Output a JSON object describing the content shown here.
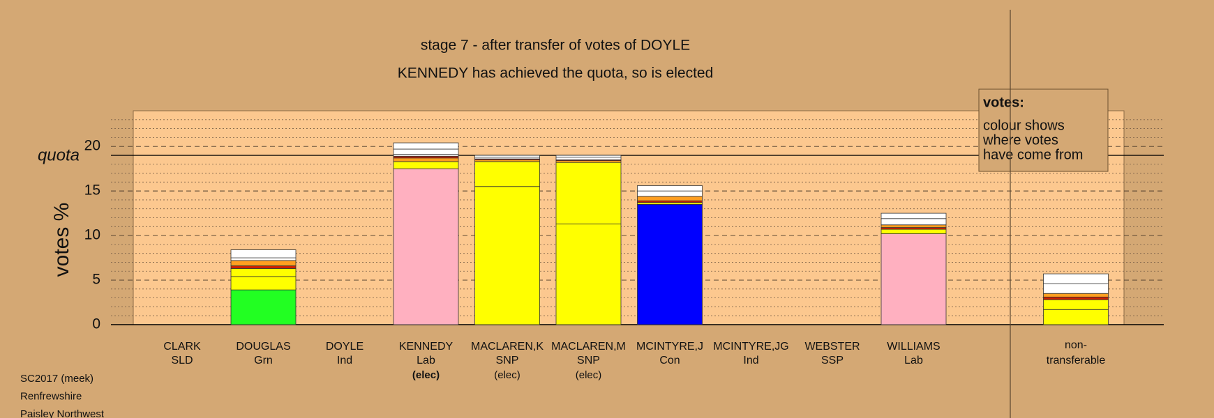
{
  "chart_data": {
    "type": "stacked-bar",
    "title": "stage 7 - after transfer of votes of DOYLE",
    "subtitle": "KENNEDY has achieved the quota, so is elected",
    "y_label": "votes %",
    "quota_label": "quota",
    "quota": 19.0,
    "ylim": [
      0,
      24
    ],
    "yticks": [
      0,
      5,
      10,
      15,
      20
    ],
    "grid": true,
    "categories": [
      "CLARK",
      "DOUGLAS",
      "DOYLE",
      "KENNEDY",
      "MACLAREN,K",
      "MACLAREN,M",
      "MCINTYRE,J",
      "MCINTYRE,JG",
      "WEBSTER",
      "WILLIAMS"
    ],
    "parties": [
      "SLD",
      "Grn",
      "Ind",
      "Lab",
      "SNP",
      "SNP",
      "Con",
      "Ind",
      "SSP",
      "Lab"
    ],
    "status": [
      null,
      null,
      null,
      "(elec)",
      "(elec)",
      "(elec)",
      null,
      null,
      null,
      null
    ],
    "highlight": 3,
    "stacks": [
      [],
      [
        {
          "color": "#22ff22",
          "value": 3.9
        },
        {
          "color": "#ffff00",
          "value": 1.5
        },
        {
          "color": "#ffff00",
          "value": 0.9
        },
        {
          "color": "#cc2000",
          "value": 0.3
        },
        {
          "color": "#ff9f20",
          "value": 0.6
        },
        {
          "color": "#ffffff",
          "value": 0.3
        },
        {
          "color": "#ffffff",
          "value": 0.9
        }
      ],
      [],
      [
        {
          "color": "#ffb0c0",
          "value": 17.5
        },
        {
          "color": "#ffff00",
          "value": 0.8
        },
        {
          "color": "#ff9f20",
          "value": 0.4
        },
        {
          "color": "#cc2000",
          "value": 0.2
        },
        {
          "color": "#ffffff",
          "value": 0.2
        },
        {
          "color": "#ffffff",
          "value": 0.6
        },
        {
          "color": "#ffffff",
          "value": 0.7
        }
      ],
      [
        {
          "color": "#ffff00",
          "value": 15.5
        },
        {
          "color": "#ffff00",
          "value": 2.8
        },
        {
          "color": "#ff9f20",
          "value": 0.2
        },
        {
          "color": "#cc2000",
          "value": 0.1
        },
        {
          "color": "#ffffff",
          "value": 0.2
        },
        {
          "color": "#ffffff",
          "value": 0.2
        }
      ],
      [
        {
          "color": "#ffff00",
          "value": 11.3
        },
        {
          "color": "#ffff00",
          "value": 6.9
        },
        {
          "color": "#ff9f20",
          "value": 0.2
        },
        {
          "color": "#cc2000",
          "value": 0.1
        },
        {
          "color": "#ffffff",
          "value": 0.3
        },
        {
          "color": "#ffffff",
          "value": 0.2
        }
      ],
      [
        {
          "color": "#0000ff",
          "value": 13.5
        },
        {
          "color": "#ffff00",
          "value": 0.2
        },
        {
          "color": "#cc2000",
          "value": 0.2
        },
        {
          "color": "#ff9f20",
          "value": 0.5
        },
        {
          "color": "#ffffff",
          "value": 0.6
        },
        {
          "color": "#ffffff",
          "value": 0.6
        }
      ],
      [],
      [],
      [
        {
          "color": "#ffb0c0",
          "value": 10.2
        },
        {
          "color": "#ffff00",
          "value": 0.5
        },
        {
          "color": "#cc2000",
          "value": 0.2
        },
        {
          "color": "#ff9f20",
          "value": 0.3
        },
        {
          "color": "#ffffff",
          "value": 0.7
        },
        {
          "color": "#ffffff",
          "value": 0.6
        }
      ]
    ],
    "extra": {
      "label": [
        "non-",
        "transferable"
      ],
      "segments": [
        {
          "color": "#ffff00",
          "value": 1.7
        },
        {
          "color": "#ffff00",
          "value": 1.1
        },
        {
          "color": "#cc2000",
          "value": 0.3
        },
        {
          "color": "#ff9f20",
          "value": 0.4
        },
        {
          "color": "#ffffff",
          "value": 1.1
        },
        {
          "color": "#ffffff",
          "value": 1.1
        }
      ]
    },
    "legend": {
      "title": "votes:",
      "lines": [
        "colour shows",
        "where votes",
        "have come from"
      ]
    }
  },
  "footer": [
    "SC2017 (meek)",
    "Renfrewshire",
    "Paisley Northwest"
  ]
}
